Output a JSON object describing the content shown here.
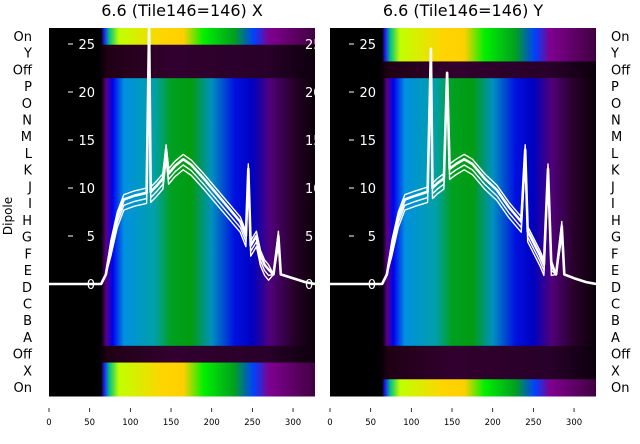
{
  "chart_data": {
    "type": "heatmap",
    "ylabel": "Dipole",
    "row_labels": [
      "On",
      "Y",
      "Off",
      "P",
      "O",
      "N",
      "M",
      "L",
      "K",
      "J",
      "I",
      "H",
      "G",
      "F",
      "E",
      "D",
      "C",
      "B",
      "A",
      "Off",
      "X",
      "On"
    ],
    "x_ticks": [
      "0",
      "50",
      "100",
      "150",
      "200",
      "250",
      "300"
    ],
    "xlim": [
      0,
      327
    ],
    "overlay_ylim": [
      0,
      26.7
    ],
    "overlay_y_ticks": [
      "0",
      "5",
      "10",
      "15",
      "20",
      "25"
    ],
    "colormap_stops": {
      "active": [
        [
          0,
          "#000000"
        ],
        [
          64,
          "#000000"
        ],
        [
          70,
          "#5a0080"
        ],
        [
          78,
          "#0000f0"
        ],
        [
          92,
          "#0090e0"
        ],
        [
          130,
          "#00a0a8"
        ],
        [
          150,
          "#00a020"
        ],
        [
          175,
          "#009c10"
        ],
        [
          200,
          "#0090c0"
        ],
        [
          228,
          "#0010e0"
        ],
        [
          250,
          "#0000c0"
        ],
        [
          272,
          "#50007a"
        ],
        [
          300,
          "#28002a"
        ],
        [
          327,
          "#0a000a"
        ]
      ],
      "on": [
        [
          0,
          "#000000"
        ],
        [
          64,
          "#000000"
        ],
        [
          68,
          "#2020ff"
        ],
        [
          74,
          "#00c080"
        ],
        [
          86,
          "#c0ff00"
        ],
        [
          140,
          "#ffd400"
        ],
        [
          165,
          "#ffd000"
        ],
        [
          190,
          "#00f000"
        ],
        [
          228,
          "#00a020"
        ],
        [
          252,
          "#0040ff"
        ],
        [
          270,
          "#800090"
        ],
        [
          327,
          "#400040"
        ]
      ],
      "off": [
        [
          0,
          "#000000"
        ],
        [
          60,
          "#000000"
        ],
        [
          72,
          "#200015"
        ],
        [
          150,
          "#32002e"
        ],
        [
          270,
          "#28002a"
        ],
        [
          327,
          "#0c000c"
        ]
      ]
    },
    "panels": [
      {
        "title": "6.6 (Tile146=146) X",
        "row_types": [
          "on",
          "off",
          "off",
          "active",
          "active",
          "active",
          "active",
          "active",
          "active",
          "active",
          "active",
          "active",
          "active",
          "active",
          "active",
          "active",
          "active",
          "active",
          "active",
          "off",
          "on",
          "on"
        ],
        "line": [
          [
            0,
            0
          ],
          [
            64,
            0
          ],
          [
            70,
            1
          ],
          [
            76,
            4
          ],
          [
            84,
            7
          ],
          [
            92,
            8.8
          ],
          [
            105,
            9.2
          ],
          [
            120,
            9.5
          ],
          [
            123,
            27
          ],
          [
            125,
            9.6
          ],
          [
            132,
            10.2
          ],
          [
            140,
            11
          ],
          [
            144,
            14
          ],
          [
            147,
            11.5
          ],
          [
            155,
            12.3
          ],
          [
            165,
            13
          ],
          [
            175,
            12.4
          ],
          [
            190,
            11
          ],
          [
            205,
            9.5
          ],
          [
            220,
            8
          ],
          [
            235,
            6.5
          ],
          [
            242,
            5
          ],
          [
            245,
            12
          ],
          [
            248,
            4
          ],
          [
            255,
            5
          ],
          [
            260,
            3
          ],
          [
            265,
            2
          ],
          [
            270,
            1.5
          ],
          [
            276,
            1
          ],
          [
            282,
            5
          ],
          [
            285,
            1
          ],
          [
            300,
            0.6
          ],
          [
            315,
            0.2
          ],
          [
            327,
            0
          ]
        ]
      },
      {
        "title": "6.6 (Tile146=146) Y",
        "row_types": [
          "on",
          "on",
          "off",
          "active",
          "active",
          "active",
          "active",
          "active",
          "active",
          "active",
          "active",
          "active",
          "active",
          "active",
          "active",
          "active",
          "active",
          "active",
          "active",
          "off",
          "off",
          "on"
        ],
        "line": [
          [
            0,
            0
          ],
          [
            64,
            0
          ],
          [
            70,
            1
          ],
          [
            76,
            4
          ],
          [
            84,
            7
          ],
          [
            92,
            8.8
          ],
          [
            105,
            9.2
          ],
          [
            120,
            9.6
          ],
          [
            124,
            24.5
          ],
          [
            126,
            10
          ],
          [
            132,
            10.5
          ],
          [
            140,
            11
          ],
          [
            144,
            22
          ],
          [
            147,
            12
          ],
          [
            155,
            12.5
          ],
          [
            165,
            13
          ],
          [
            175,
            12.5
          ],
          [
            190,
            11
          ],
          [
            205,
            9.8
          ],
          [
            220,
            8
          ],
          [
            235,
            6.5
          ],
          [
            240,
            14
          ],
          [
            243,
            5.5
          ],
          [
            252,
            4
          ],
          [
            258,
            3
          ],
          [
            263,
            2
          ],
          [
            268,
            12
          ],
          [
            272,
            2
          ],
          [
            278,
            1
          ],
          [
            285,
            6
          ],
          [
            288,
            1
          ],
          [
            300,
            0.6
          ],
          [
            315,
            0.2
          ],
          [
            327,
            0
          ]
        ]
      }
    ]
  }
}
